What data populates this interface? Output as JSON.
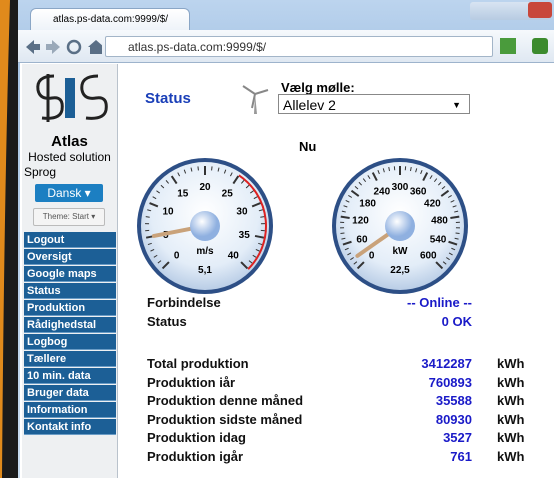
{
  "browser": {
    "tab_title": "atlas.ps-data.com:9999/$/",
    "url": "atlas.ps-data.com:9999/$/"
  },
  "sidebar": {
    "title": "Atlas",
    "subtitle": "Hosted solution",
    "language_label": "Sprog",
    "language_button": "Dansk",
    "theme_button": "Theme: Start",
    "menu": [
      "Logout",
      "Oversigt",
      "Google maps",
      "Status",
      "Produktion",
      "Rådighedstal",
      "Logbog",
      "Tællere",
      "10 min. data",
      "Bruger data",
      "Information",
      "Kontakt info"
    ]
  },
  "main": {
    "heading": "Status",
    "select_label": "Vælg mølle:",
    "select_value": "Allelev 2",
    "gauge_title": "Nu",
    "gauges": [
      {
        "ticks": [
          "0",
          "5",
          "10",
          "15",
          "20",
          "25",
          "30",
          "35",
          "40"
        ],
        "unit": "m/s",
        "value": "5,1"
      },
      {
        "ticks": [
          "0",
          "60",
          "120",
          "180",
          "240",
          "300",
          "360",
          "420",
          "480",
          "540",
          "600"
        ],
        "unit": "kW",
        "value": "22,5"
      }
    ],
    "status_rows": [
      [
        "Forbindelse",
        "-- Online --"
      ],
      [
        "Status",
        "0 OK"
      ]
    ],
    "production_rows": [
      [
        "Total produktion",
        3412287,
        "kWh"
      ],
      [
        "Produktion iår",
        760893,
        "kWh"
      ],
      [
        "Produktion denne måned",
        35588,
        "kWh"
      ],
      [
        "Produktion sidste måned",
        80930,
        "kWh"
      ],
      [
        "Produktion idag",
        3527,
        "kWh"
      ],
      [
        "Produktion igår",
        761,
        "kWh"
      ]
    ]
  }
}
